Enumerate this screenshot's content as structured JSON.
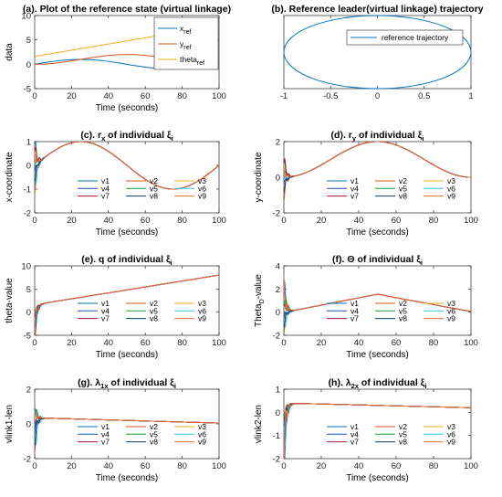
{
  "chart_data": [
    {
      "type": "line",
      "title": "(a). Plot of the reference state (virtual linkage)",
      "xlabel": "Time (seconds)",
      "ylabel": "data",
      "xlim": [
        0,
        100
      ],
      "ylim": [
        -5,
        10
      ],
      "xticks": [
        "0",
        "20",
        "40",
        "60",
        "80",
        "100"
      ],
      "yticks": [
        "-5",
        "0",
        "5",
        "10"
      ],
      "legend_pos": "top-right",
      "legend": [
        "x_ref",
        "y_ref",
        "theta_ref"
      ],
      "series": [
        {
          "name": "x_ref",
          "color": "#0072BD",
          "x": [
            0,
            5,
            10,
            15,
            20,
            25,
            30,
            35,
            40,
            45,
            50,
            55,
            60,
            65,
            70,
            75,
            80,
            85,
            90,
            95,
            100
          ],
          "y": [
            0,
            0.31,
            0.59,
            0.81,
            0.95,
            1.0,
            0.95,
            0.81,
            0.59,
            0.31,
            0,
            -0.31,
            -0.59,
            -0.81,
            -0.95,
            -1.0,
            -0.95,
            -0.81,
            -0.59,
            -0.31,
            0
          ]
        },
        {
          "name": "y_ref",
          "color": "#D95319",
          "x": [
            0,
            5,
            10,
            15,
            20,
            25,
            30,
            35,
            40,
            45,
            50,
            55,
            60,
            65,
            70,
            75,
            80,
            85,
            90,
            95,
            100
          ],
          "y": [
            0,
            0.05,
            0.19,
            0.41,
            0.69,
            1.0,
            1.31,
            1.59,
            1.81,
            1.95,
            2.0,
            1.95,
            1.81,
            1.59,
            1.31,
            1.0,
            0.69,
            0.41,
            0.19,
            0.05,
            0
          ]
        },
        {
          "name": "theta_ref",
          "color": "#EDB120",
          "x": [
            0,
            100
          ],
          "y": [
            1.6,
            8.0
          ]
        }
      ]
    },
    {
      "type": "line",
      "title": "(b). Reference leader(virtual linkage) trajectory",
      "xlim": [
        -1,
        1
      ],
      "ylim": [
        0,
        2
      ],
      "xticks": [
        "-1",
        "-0.5",
        "0",
        "0.5",
        "1"
      ],
      "legend_pos": "top-right",
      "legend": [
        "reference trajectory"
      ],
      "series": [
        {
          "name": "reference trajectory",
          "color": "#0072BD",
          "shape": "ellipse",
          "x_range": [
            -1,
            1
          ],
          "y_range": [
            0,
            2
          ]
        }
      ]
    },
    {
      "type": "line",
      "title_prefix": "(c). r",
      "title_sub": "x",
      "title_suffix": " of individual ξ",
      "title_sub2": "i",
      "xlabel": "Time (seconds)",
      "ylabel": "x-coordinate",
      "xlim": [
        0,
        100
      ],
      "ylim": [
        -2,
        1
      ],
      "xticks": [
        "0",
        "20",
        "40",
        "60",
        "80",
        "100"
      ],
      "yticks": [
        "-2",
        "-1",
        "0",
        "1"
      ],
      "legend": [
        "v1",
        "v2",
        "v3",
        "v4",
        "v5",
        "v6",
        "v7",
        "v8",
        "v9"
      ],
      "series_shape": "sine",
      "amplitude": 1,
      "period": 100,
      "offset": 0,
      "initial_values": [
        0.9,
        -0.8,
        0.5,
        -0.3,
        0.2,
        -1.0,
        0.7,
        -0.5,
        0.3
      ]
    },
    {
      "type": "line",
      "title_prefix": "(d). r",
      "title_sub": "y",
      "title_suffix": " of individual ξ",
      "title_sub2": "i",
      "xlabel": "Time (seconds)",
      "ylabel": "y-coordinate",
      "xlim": [
        0,
        100
      ],
      "ylim": [
        -2,
        2
      ],
      "xticks": [
        "0",
        "20",
        "40",
        "60",
        "80",
        "100"
      ],
      "yticks": [
        "-2",
        "0",
        "2"
      ],
      "legend": [
        "v1",
        "v2",
        "v3",
        "v4",
        "v5",
        "v6",
        "v7",
        "v8",
        "v9"
      ],
      "series_shape": "1-cos",
      "amplitude": 1,
      "period": 100,
      "offset": 1,
      "initial_values": [
        0.8,
        -0.9,
        0.5,
        -0.4,
        0.6,
        -0.2,
        1.0,
        -0.6,
        0.3
      ]
    },
    {
      "type": "line",
      "title": "(e). q of individual ξ",
      "title_sub2": "i",
      "xlabel": "Time (seconds)",
      "ylabel": "theta-value",
      "xlim": [
        0,
        100
      ],
      "ylim": [
        -5,
        10
      ],
      "xticks": [
        "0",
        "20",
        "40",
        "60",
        "80",
        "100"
      ],
      "yticks": [
        "-5",
        "0",
        "5",
        "10"
      ],
      "legend": [
        "v1",
        "v2",
        "v3",
        "v4",
        "v5",
        "v6",
        "v7",
        "v8",
        "v9"
      ],
      "series_shape": "linear",
      "start": 1.6,
      "end": 8.0,
      "initial_values": [
        -3.5,
        -2.5,
        -1.5,
        -3.0,
        -2.0,
        -4.0,
        -1.0,
        -3.8,
        -2.8
      ]
    },
    {
      "type": "line",
      "title": "(f). Θ of individual ξ",
      "title_sub2": "i",
      "xlabel": "Time (seconds)",
      "ylabel_prefix": "Theta",
      "ylabel_sub": "D",
      "ylabel_suffix": "-value",
      "xlim": [
        0,
        100
      ],
      "ylim": [
        -2,
        4
      ],
      "xticks": [
        "0",
        "20",
        "40",
        "60",
        "80",
        "100"
      ],
      "yticks": [
        "-2",
        "0",
        "2",
        "4"
      ],
      "legend": [
        "v1",
        "v2",
        "v3",
        "v4",
        "v5",
        "v6",
        "v7",
        "v8",
        "v9"
      ],
      "series_shape": "triangle",
      "points": [
        [
          4,
          0.1
        ],
        [
          50,
          1.55
        ],
        [
          100,
          0.05
        ]
      ],
      "initial_values": [
        2.4,
        -1.2,
        1.0,
        -0.6,
        1.8,
        -1.6,
        0.6,
        -0.9,
        2.0
      ]
    },
    {
      "type": "line",
      "title_prefix": "(g). λ",
      "title_sub": "1x",
      "title_suffix": " of individual ξ",
      "title_sub2": "i",
      "xlabel": "Time (seconds)",
      "ylabel": "vlink1-len",
      "xlim": [
        0,
        100
      ],
      "ylim": [
        -2,
        2
      ],
      "xticks": [
        "0",
        "20",
        "40",
        "60",
        "80",
        "100"
      ],
      "yticks": [
        "-2",
        "0",
        "2"
      ],
      "legend": [
        "v1",
        "v2",
        "v3",
        "v4",
        "v5",
        "v6",
        "v7",
        "v8",
        "v9"
      ],
      "series_shape": "linear",
      "start": 0.35,
      "end": 0.05,
      "initial_values": [
        0.8,
        -1.0,
        0.4,
        -0.5,
        1.1,
        -1.6,
        0.2,
        -0.8,
        0.6
      ]
    },
    {
      "type": "line",
      "title_prefix": "(h). λ",
      "title_sub": "2x",
      "title_suffix": " of individual ξ",
      "title_sub2": "i",
      "xlabel": "Time (seconds)",
      "ylabel": "vlink2-len",
      "xlim": [
        0,
        100
      ],
      "ylim": [
        -2,
        1
      ],
      "xticks": [
        "0",
        "20",
        "40",
        "60",
        "80",
        "100"
      ],
      "yticks": [
        "-2",
        "-1",
        "0",
        "1"
      ],
      "legend": [
        "v1",
        "v2",
        "v3",
        "v4",
        "v5",
        "v6",
        "v7",
        "v8",
        "v9"
      ],
      "series_shape": "linear",
      "start": 0.4,
      "end": 0.2,
      "initial_values": [
        -1.8,
        -1.2,
        -0.6,
        -1.5,
        -0.9,
        -1.9,
        -0.3,
        -1.0,
        -1.4
      ]
    }
  ],
  "agent_colors": [
    "#0072BD",
    "#D95319",
    "#EDB120",
    "#1f4fbf",
    "#1a9a3c",
    "#35c4e0",
    "#a2142f",
    "#0d3b66",
    "#ff6633"
  ]
}
